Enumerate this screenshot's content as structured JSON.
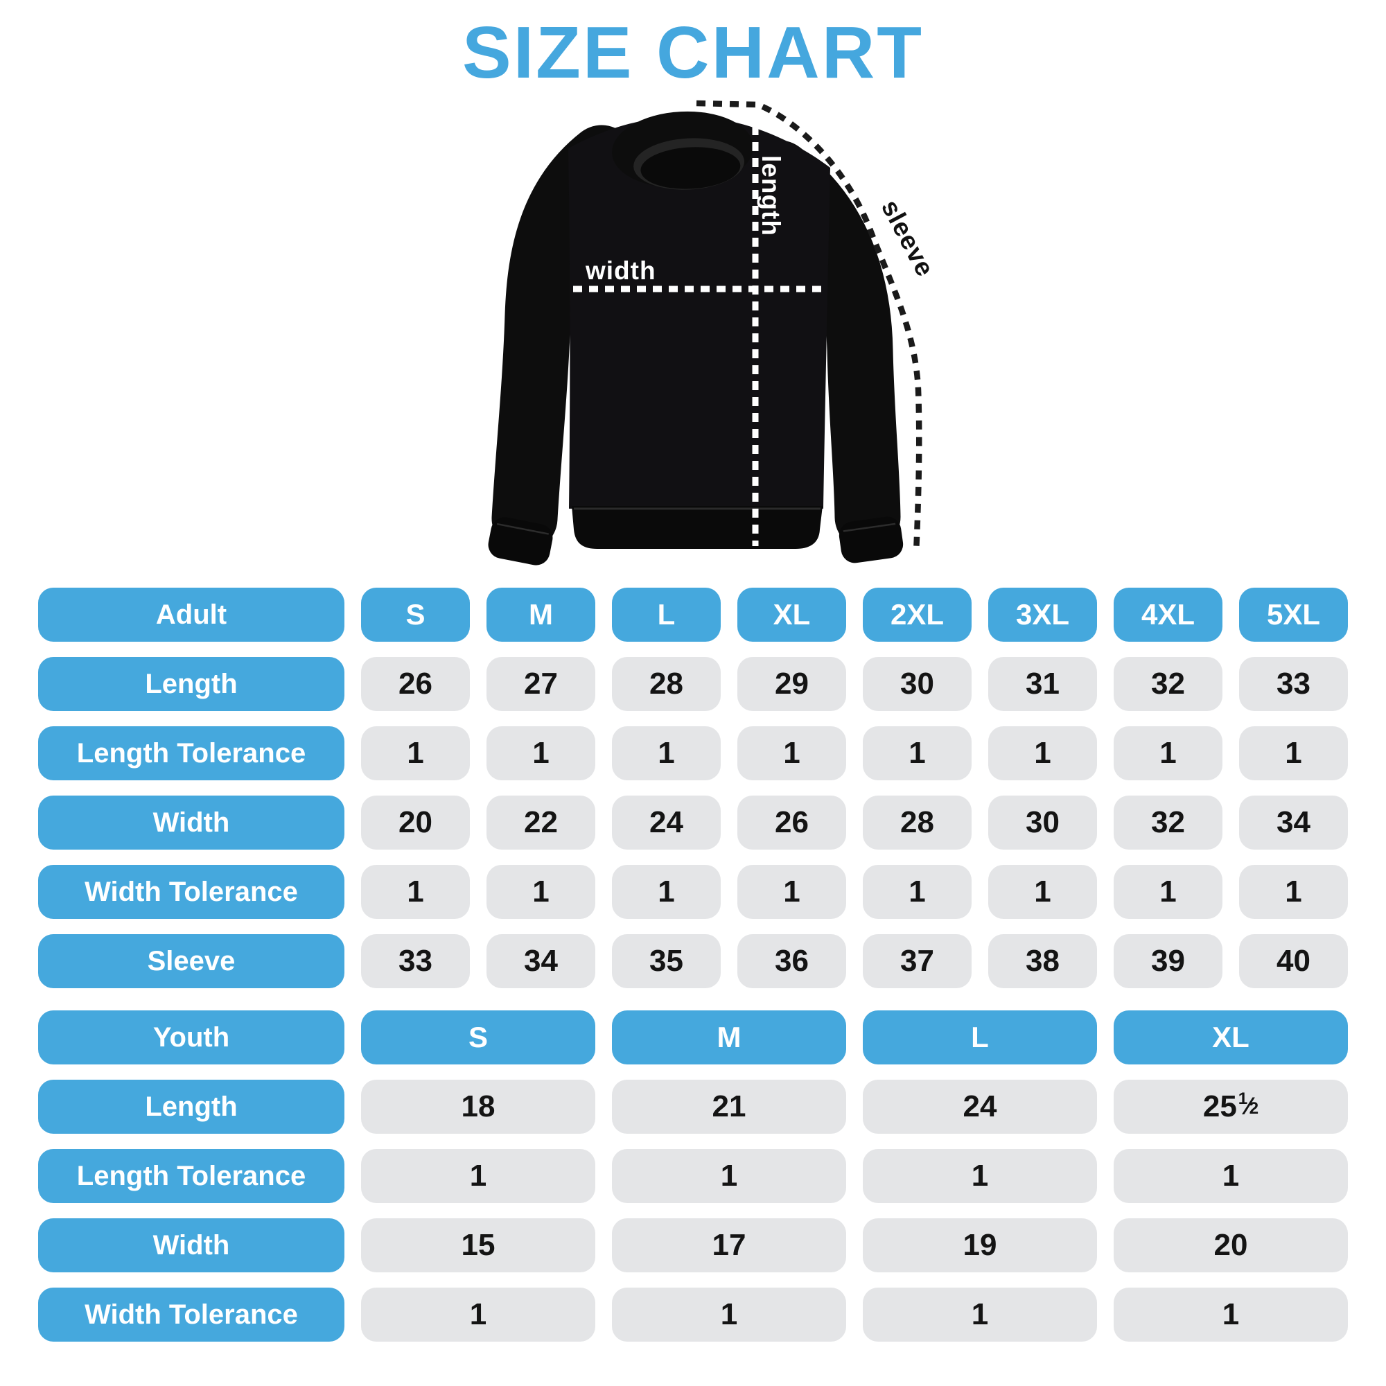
{
  "title": "SIZE CHART",
  "colors": {
    "accent_blue": "#45a8dd",
    "title_blue": "#45a7de",
    "cell_gray": "#e4e5e7",
    "text_dark": "#141414",
    "garment_black": "#101010",
    "label_white": "#ffffff"
  },
  "diagram": {
    "garment": "black crewneck sweatshirt",
    "labels": {
      "length": "length",
      "width": "width",
      "sleeve": "sleeve"
    }
  },
  "chart_data": [
    {
      "type": "table",
      "title": "Adult sizes (inches)",
      "columns": [
        "Adult",
        "S",
        "M",
        "L",
        "XL",
        "2XL",
        "3XL",
        "4XL",
        "5XL"
      ],
      "rows": [
        [
          "Length",
          "26",
          "27",
          "28",
          "29",
          "30",
          "31",
          "32",
          "33"
        ],
        [
          "Length Tolerance",
          "1",
          "1",
          "1",
          "1",
          "1",
          "1",
          "1",
          "1"
        ],
        [
          "Width",
          "20",
          "22",
          "24",
          "26",
          "28",
          "30",
          "32",
          "34"
        ],
        [
          "Width Tolerance",
          "1",
          "1",
          "1",
          "1",
          "1",
          "1",
          "1",
          "1"
        ],
        [
          "Sleeve",
          "33",
          "34",
          "35",
          "36",
          "37",
          "38",
          "39",
          "40"
        ]
      ]
    },
    {
      "type": "table",
      "title": "Youth sizes (inches)",
      "columns": [
        "Youth",
        "S",
        "M",
        "L",
        "XL"
      ],
      "rows": [
        [
          "Length",
          "18",
          "21",
          "24",
          "25 1/2"
        ],
        [
          "Length Tolerance",
          "1",
          "1",
          "1",
          "1"
        ],
        [
          "Width",
          "15",
          "17",
          "19",
          "20"
        ],
        [
          "Width Tolerance",
          "1",
          "1",
          "1",
          "1"
        ]
      ]
    }
  ]
}
